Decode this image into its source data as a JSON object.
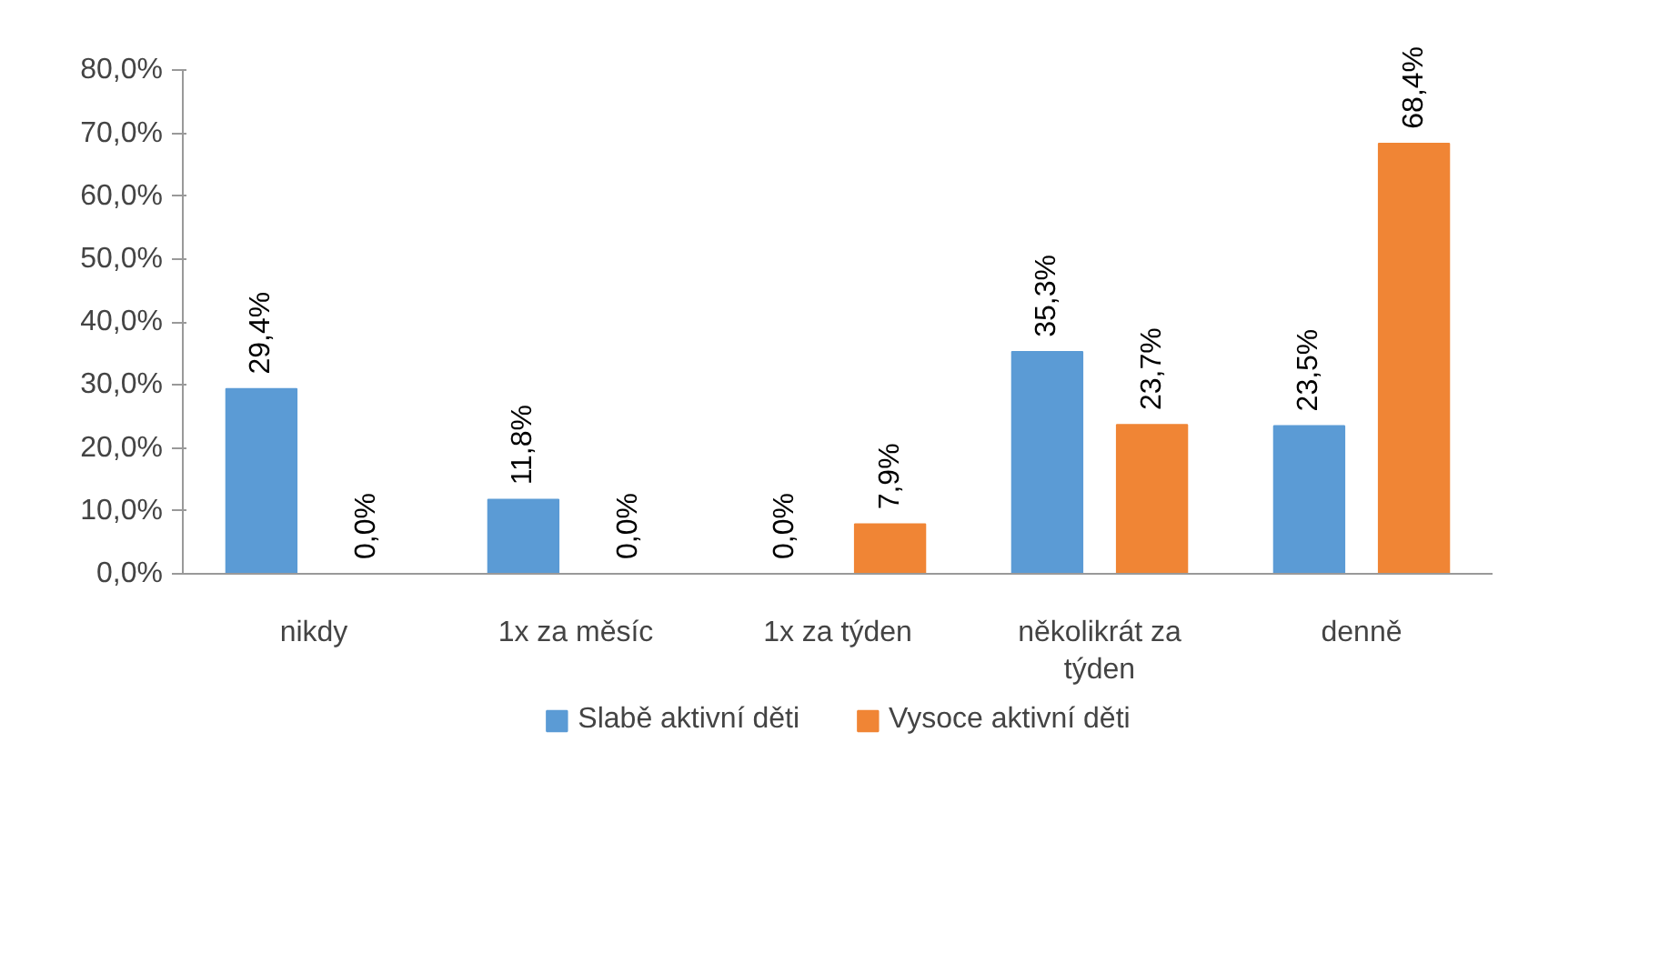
{
  "chart_data": {
    "type": "bar",
    "categories": [
      "nikdy",
      "1x za měsíc",
      "1x za týden",
      "několikrát za týden",
      "denně"
    ],
    "series": [
      {
        "name": "Slabě aktivní děti",
        "color": "#5b9bd5",
        "values": [
          29.4,
          11.8,
          0.0,
          35.3,
          23.5
        ],
        "value_labels": [
          "29,4%",
          "11,8%",
          "0,0%",
          "35,3%",
          "23,5%"
        ]
      },
      {
        "name": "Vysoce aktivní děti",
        "color": "#f08535",
        "values": [
          0.0,
          0.0,
          7.9,
          23.7,
          68.4
        ],
        "value_labels": [
          "0,0%",
          "0,0%",
          "7,9%",
          "23,7%",
          "68,4%"
        ]
      }
    ],
    "ylim": [
      0,
      80
    ],
    "yticks": [
      {
        "value": 0,
        "label": "0,0%"
      },
      {
        "value": 10,
        "label": "10,0%"
      },
      {
        "value": 20,
        "label": "20,0%"
      },
      {
        "value": 30,
        "label": "30,0%"
      },
      {
        "value": 40,
        "label": "40,0%"
      },
      {
        "value": 50,
        "label": "50,0%"
      },
      {
        "value": 60,
        "label": "60,0%"
      },
      {
        "value": 70,
        "label": "70,0%"
      },
      {
        "value": 80,
        "label": "80,0%"
      }
    ],
    "grid": false,
    "legend": "bottom"
  }
}
